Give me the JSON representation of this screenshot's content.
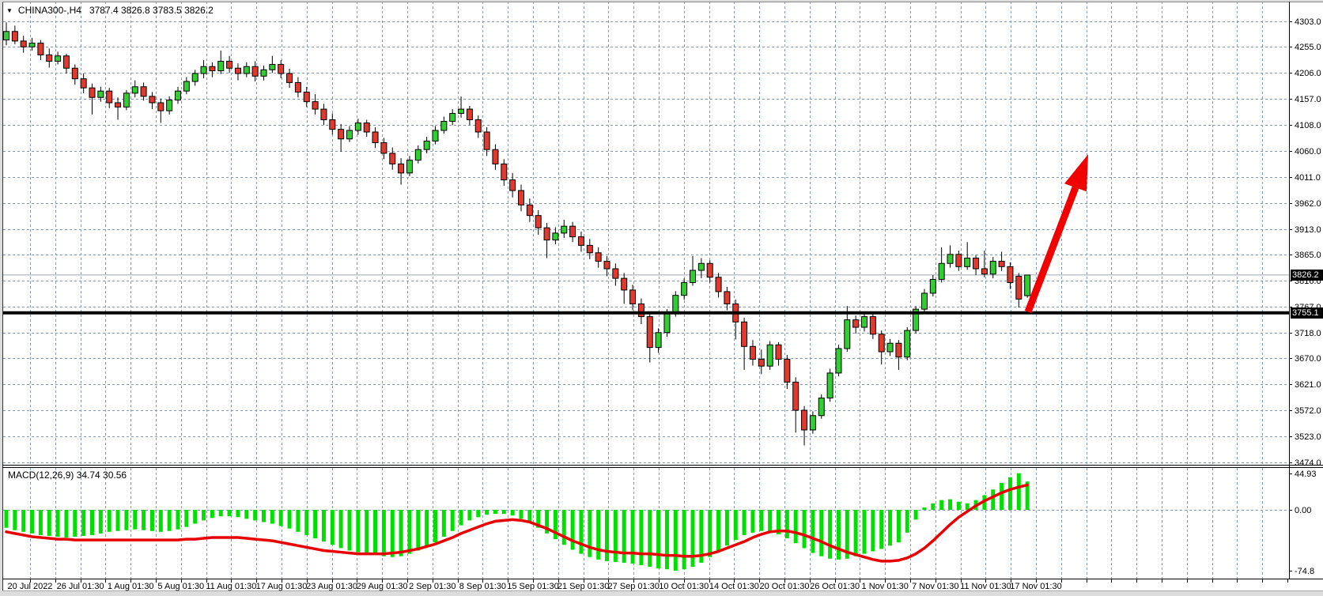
{
  "window": {
    "dropdown_icon": "▼",
    "title": {
      "symbol": "CHINA300-,H4",
      "ohlc": "3787.4 3826.8 3783.5 3826.2"
    }
  },
  "macd_panel": {
    "label": "MACD(12,26,9) 34.74 30.56",
    "axis_labels": [
      {
        "value": 44.93,
        "text": "44.93"
      },
      {
        "value": 0,
        "text": "0.00"
      },
      {
        "value": -74.8,
        "text": "-74.8"
      }
    ]
  },
  "price_axis": {
    "tick_values": [
      4303,
      4255,
      4206,
      4157,
      4108,
      4060,
      4011,
      3962,
      3913,
      3865,
      3816,
      3767,
      3718,
      3670,
      3621,
      3572,
      3523,
      3474
    ],
    "current_price_badge": "3826.2",
    "hline_badge": "3755.1"
  },
  "time_axis": {
    "labels": [
      "20 Jul 2022",
      "26 Jul 01:30",
      "1 Aug 01:30",
      "5 Aug 01:30",
      "11 Aug 01:30",
      "17 Aug 01:30",
      "23 Aug 01:30",
      "29 Aug 01:30",
      "2 Sep 01:30",
      "8 Sep 01:30",
      "15 Sep 01:30",
      "21 Sep 01:30",
      "27 Sep 01:30",
      "10 Oct 01:30",
      "14 Oct 01:30",
      "20 Oct 01:30",
      "26 Oct 01:30",
      "1 Nov 01:30",
      "7 Nov 01:30",
      "11 Nov 01:30",
      "17 Nov 01:30"
    ]
  },
  "colors": {
    "up": "#32cd32",
    "down": "#e0392e",
    "candle_border": "#000000",
    "wick": "#000000",
    "grid": "#8a9aae",
    "hist": "#00e000",
    "signal": "#e80000",
    "arrow": "#f10000",
    "hline": "#000000",
    "price_line": "#9aa8b5",
    "badge_bg": "#000000",
    "badge_text": "#ffffff",
    "text": "#000000",
    "border": "#000000"
  },
  "chart_data": {
    "type": "candlestick",
    "symbol": "CHINA300-",
    "timeframe": "H4",
    "title": "CHINA300-,H4 3787.4 3826.8 3783.5 3826.2",
    "last_ohlc": {
      "open": 3787.4,
      "high": 3826.8,
      "low": 3783.5,
      "close": 3826.2
    },
    "price_axis_range": [
      3474,
      4303
    ],
    "candles": [
      [
        4268,
        4301,
        4258,
        4284
      ],
      [
        4284,
        4295,
        4260,
        4266
      ],
      [
        4266,
        4276,
        4244,
        4255
      ],
      [
        4255,
        4272,
        4248,
        4262
      ],
      [
        4262,
        4268,
        4230,
        4240
      ],
      [
        4240,
        4252,
        4216,
        4228
      ],
      [
        4228,
        4246,
        4222,
        4238
      ],
      [
        4238,
        4242,
        4205,
        4215
      ],
      [
        4215,
        4222,
        4184,
        4195
      ],
      [
        4195,
        4205,
        4168,
        4178
      ],
      [
        4178,
        4186,
        4128,
        4160
      ],
      [
        4160,
        4180,
        4152,
        4172
      ],
      [
        4172,
        4178,
        4140,
        4150
      ],
      [
        4150,
        4160,
        4118,
        4142
      ],
      [
        4142,
        4174,
        4136,
        4168
      ],
      [
        4168,
        4192,
        4160,
        4180
      ],
      [
        4180,
        4188,
        4154,
        4162
      ],
      [
        4162,
        4170,
        4138,
        4150
      ],
      [
        4150,
        4158,
        4112,
        4135
      ],
      [
        4135,
        4162,
        4128,
        4155
      ],
      [
        4155,
        4180,
        4148,
        4172
      ],
      [
        4172,
        4198,
        4166,
        4190
      ],
      [
        4190,
        4212,
        4182,
        4205
      ],
      [
        4205,
        4230,
        4196,
        4218
      ],
      [
        4218,
        4226,
        4198,
        4210
      ],
      [
        4210,
        4248,
        4204,
        4228
      ],
      [
        4228,
        4238,
        4206,
        4215
      ],
      [
        4215,
        4224,
        4192,
        4205
      ],
      [
        4205,
        4226,
        4198,
        4218
      ],
      [
        4218,
        4228,
        4190,
        4200
      ],
      [
        4200,
        4220,
        4192,
        4212
      ],
      [
        4212,
        4238,
        4206,
        4222
      ],
      [
        4222,
        4230,
        4196,
        4205
      ],
      [
        4205,
        4214,
        4178,
        4188
      ],
      [
        4188,
        4198,
        4160,
        4170
      ],
      [
        4170,
        4180,
        4142,
        4152
      ],
      [
        4152,
        4166,
        4128,
        4138
      ],
      [
        4138,
        4148,
        4108,
        4118
      ],
      [
        4118,
        4130,
        4090,
        4100
      ],
      [
        4100,
        4110,
        4058,
        4082
      ],
      [
        4082,
        4106,
        4076,
        4098
      ],
      [
        4098,
        4120,
        4090,
        4112
      ],
      [
        4112,
        4118,
        4086,
        4095
      ],
      [
        4095,
        4104,
        4065,
        4075
      ],
      [
        4075,
        4084,
        4044,
        4055
      ],
      [
        4055,
        4066,
        4024,
        4035
      ],
      [
        4035,
        4046,
        3996,
        4018
      ],
      [
        4018,
        4050,
        4012,
        4042
      ],
      [
        4042,
        4070,
        4036,
        4062
      ],
      [
        4062,
        4086,
        4055,
        4078
      ],
      [
        4078,
        4106,
        4072,
        4098
      ],
      [
        4098,
        4124,
        4092,
        4115
      ],
      [
        4115,
        4138,
        4108,
        4130
      ],
      [
        4130,
        4162,
        4122,
        4138
      ],
      [
        4138,
        4144,
        4108,
        4118
      ],
      [
        4118,
        4126,
        4084,
        4095
      ],
      [
        4095,
        4104,
        4050,
        4062
      ],
      [
        4062,
        4072,
        4024,
        4035
      ],
      [
        4035,
        4044,
        3994,
        4005
      ],
      [
        4005,
        4018,
        3972,
        3985
      ],
      [
        3985,
        3996,
        3946,
        3958
      ],
      [
        3958,
        3970,
        3926,
        3938
      ],
      [
        3938,
        3948,
        3902,
        3915
      ],
      [
        3915,
        3924,
        3858,
        3892
      ],
      [
        3892,
        3916,
        3884,
        3905
      ],
      [
        3905,
        3930,
        3896,
        3918
      ],
      [
        3918,
        3926,
        3888,
        3898
      ],
      [
        3898,
        3908,
        3870,
        3882
      ],
      [
        3882,
        3894,
        3856,
        3868
      ],
      [
        3868,
        3878,
        3840,
        3852
      ],
      [
        3852,
        3862,
        3824,
        3838
      ],
      [
        3838,
        3848,
        3806,
        3820
      ],
      [
        3820,
        3830,
        3772,
        3798
      ],
      [
        3798,
        3808,
        3760,
        3772
      ],
      [
        3772,
        3782,
        3734,
        3748
      ],
      [
        3748,
        3756,
        3662,
        3690
      ],
      [
        3690,
        3726,
        3680,
        3718
      ],
      [
        3718,
        3762,
        3710,
        3755
      ],
      [
        3755,
        3796,
        3748,
        3788
      ],
      [
        3788,
        3820,
        3780,
        3812
      ],
      [
        3812,
        3862,
        3806,
        3835
      ],
      [
        3835,
        3858,
        3820,
        3848
      ],
      [
        3848,
        3854,
        3812,
        3822
      ],
      [
        3822,
        3830,
        3784,
        3795
      ],
      [
        3795,
        3804,
        3760,
        3772
      ],
      [
        3772,
        3780,
        3705,
        3738
      ],
      [
        3738,
        3746,
        3648,
        3692
      ],
      [
        3692,
        3704,
        3656,
        3668
      ],
      [
        3668,
        3686,
        3640,
        3655
      ],
      [
        3655,
        3702,
        3648,
        3695
      ],
      [
        3695,
        3700,
        3656,
        3668
      ],
      [
        3668,
        3676,
        3612,
        3625
      ],
      [
        3625,
        3634,
        3530,
        3572
      ],
      [
        3572,
        3580,
        3506,
        3535
      ],
      [
        3535,
        3570,
        3528,
        3562
      ],
      [
        3562,
        3602,
        3556,
        3595
      ],
      [
        3595,
        3650,
        3588,
        3642
      ],
      [
        3642,
        3695,
        3636,
        3688
      ],
      [
        3688,
        3768,
        3682,
        3742
      ],
      [
        3742,
        3750,
        3716,
        3728
      ],
      [
        3728,
        3756,
        3720,
        3748
      ],
      [
        3748,
        3754,
        3706,
        3715
      ],
      [
        3715,
        3722,
        3658,
        3682
      ],
      [
        3682,
        3706,
        3674,
        3698
      ],
      [
        3698,
        3704,
        3648,
        3672
      ],
      [
        3672,
        3728,
        3666,
        3722
      ],
      [
        3722,
        3768,
        3716,
        3762
      ],
      [
        3762,
        3800,
        3756,
        3792
      ],
      [
        3792,
        3826,
        3786,
        3818
      ],
      [
        3818,
        3878,
        3812,
        3848
      ],
      [
        3848,
        3882,
        3840,
        3865
      ],
      [
        3865,
        3872,
        3834,
        3842
      ],
      [
        3842,
        3888,
        3836,
        3858
      ],
      [
        3858,
        3864,
        3826,
        3838
      ],
      [
        3838,
        3872,
        3822,
        3828
      ],
      [
        3828,
        3860,
        3820,
        3852
      ],
      [
        3852,
        3870,
        3834,
        3842
      ],
      [
        3842,
        3850,
        3800,
        3812
      ],
      [
        3824,
        3830,
        3765,
        3781
      ],
      [
        3787.4,
        3826.8,
        3783.5,
        3826.2
      ]
    ],
    "overlays": {
      "horizontal_line_price": 3755.1,
      "current_price": 3826.2,
      "arrow_annotation": {
        "shape": "up-arrow",
        "from_price": 3757,
        "to_price": 4053
      }
    },
    "macd": {
      "params": [
        12,
        26,
        9
      ],
      "last_macd": 34.74,
      "last_signal": 30.56,
      "range": [
        -74.8,
        44.93
      ],
      "histogram": [
        -22,
        -25,
        -27,
        -29,
        -31,
        -32,
        -33,
        -34,
        -33,
        -32,
        -31,
        -29,
        -27,
        -26,
        -25,
        -24,
        -25,
        -26,
        -27,
        -26,
        -24,
        -21,
        -17,
        -13,
        -10,
        -8,
        -8,
        -9,
        -11,
        -13,
        -15,
        -17,
        -20,
        -23,
        -27,
        -31,
        -35,
        -39,
        -43,
        -47,
        -50,
        -52,
        -53,
        -55,
        -57,
        -58,
        -57,
        -54,
        -50,
        -46,
        -40,
        -33,
        -26,
        -19,
        -13,
        -9,
        -6,
        -5,
        -5,
        -7,
        -11,
        -16,
        -22,
        -29,
        -36,
        -43,
        -49,
        -54,
        -58,
        -61,
        -63,
        -64,
        -65,
        -66,
        -68,
        -70,
        -72,
        -73,
        -74.8,
        -73,
        -70,
        -65,
        -58,
        -51,
        -44,
        -37,
        -31,
        -28,
        -26,
        -27,
        -30,
        -35,
        -41,
        -47,
        -53,
        -57,
        -60,
        -61,
        -60,
        -57,
        -54,
        -51,
        -48,
        -44,
        -40,
        -28,
        -12,
        3,
        8,
        12,
        13,
        10,
        8,
        12,
        18,
        25,
        33,
        40,
        44.93,
        34.74
      ],
      "signal": [
        -27,
        -29,
        -31,
        -33,
        -34,
        -35,
        -36,
        -36,
        -37,
        -37,
        -37,
        -37,
        -37,
        -37,
        -37,
        -37,
        -37,
        -37,
        -37,
        -37,
        -37,
        -36,
        -36,
        -35,
        -34,
        -34,
        -34,
        -34,
        -35,
        -36,
        -37,
        -38,
        -40,
        -42,
        -44,
        -46,
        -48,
        -50,
        -51,
        -52,
        -53,
        -54,
        -54,
        -54,
        -54,
        -53,
        -52,
        -50,
        -48,
        -45,
        -42,
        -38,
        -34,
        -29,
        -25,
        -21,
        -17,
        -14,
        -13,
        -12,
        -13,
        -15,
        -19,
        -23,
        -28,
        -33,
        -38,
        -42,
        -46,
        -49,
        -51,
        -52,
        -53,
        -53,
        -54,
        -54,
        -55,
        -56,
        -56,
        -57,
        -57,
        -56,
        -54,
        -51,
        -47,
        -43,
        -39,
        -34,
        -30,
        -27,
        -26,
        -26,
        -28,
        -31,
        -35,
        -39,
        -44,
        -48,
        -52,
        -55,
        -58,
        -61,
        -63,
        -63,
        -62,
        -59,
        -54,
        -47,
        -38,
        -28,
        -18,
        -9,
        -2,
        5,
        11,
        16,
        21,
        25,
        28,
        30.56
      ]
    }
  }
}
